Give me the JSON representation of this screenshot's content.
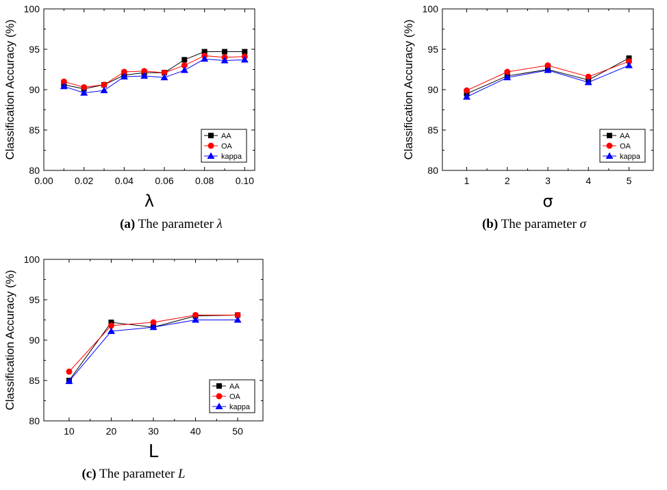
{
  "chart_data": [
    {
      "type": "line",
      "title": "",
      "xlabel": "λ",
      "ylabel": "Classification Accuracy (%)",
      "x": [
        0.01,
        0.02,
        0.03,
        0.04,
        0.05,
        0.06,
        0.07,
        0.08,
        0.09,
        0.1
      ],
      "xlim": [
        0.0,
        0.105
      ],
      "ylim": [
        80,
        100
      ],
      "xticks": [
        "0.00",
        "0.02",
        "0.04",
        "0.06",
        "0.08",
        "0.10"
      ],
      "xtick_values": [
        0.0,
        0.02,
        0.04,
        0.06,
        0.08,
        0.1
      ],
      "yticks": [
        "80",
        "85",
        "90",
        "95",
        "100"
      ],
      "ytick_values": [
        80,
        85,
        90,
        95,
        100
      ],
      "legend_position": "bottom-right",
      "series": [
        {
          "name": "AA",
          "color": "#000000",
          "marker": "square",
          "values": [
            90.6,
            90.1,
            90.6,
            91.8,
            92.1,
            92.1,
            93.7,
            94.7,
            94.7,
            94.7
          ]
        },
        {
          "name": "OA",
          "color": "#ff0000",
          "marker": "circle",
          "values": [
            91.0,
            90.3,
            90.6,
            92.2,
            92.3,
            92.1,
            93.0,
            94.2,
            94.0,
            94.1
          ]
        },
        {
          "name": "kappa",
          "color": "#0000ff",
          "marker": "triangle",
          "values": [
            90.4,
            89.6,
            89.9,
            91.6,
            91.7,
            91.5,
            92.4,
            93.8,
            93.6,
            93.7
          ]
        }
      ],
      "caption": {
        "label": "(a)",
        "text": "The parameter",
        "symbol": "λ"
      }
    },
    {
      "type": "line",
      "title": "",
      "xlabel": "σ",
      "ylabel": "Classification Accuracy (%)",
      "x": [
        1,
        2,
        3,
        4,
        5
      ],
      "xlim": [
        0.4,
        5.6
      ],
      "ylim": [
        80,
        100
      ],
      "xticks": [
        "1",
        "2",
        "3",
        "4",
        "5"
      ],
      "xtick_values": [
        1,
        2,
        3,
        4,
        5
      ],
      "yticks": [
        "80",
        "85",
        "90",
        "95",
        "100"
      ],
      "ytick_values": [
        80,
        85,
        90,
        95,
        100
      ],
      "legend_position": "bottom-right",
      "series": [
        {
          "name": "AA",
          "color": "#000000",
          "marker": "square",
          "values": [
            89.5,
            91.7,
            92.5,
            91.2,
            93.9
          ]
        },
        {
          "name": "OA",
          "color": "#ff0000",
          "marker": "circle",
          "values": [
            89.9,
            92.2,
            93.0,
            91.6,
            93.5
          ]
        },
        {
          "name": "kappa",
          "color": "#0000ff",
          "marker": "triangle",
          "values": [
            89.1,
            91.5,
            92.4,
            90.9,
            93.0
          ]
        }
      ],
      "caption": {
        "label": "(b)",
        "text": "The parameter",
        "symbol": "σ"
      }
    },
    {
      "type": "line",
      "title": "",
      "xlabel": "L",
      "ylabel": "Classification Accuracy (%)",
      "x": [
        10,
        20,
        30,
        40,
        50
      ],
      "xlim": [
        4,
        56
      ],
      "ylim": [
        80,
        100
      ],
      "xticks": [
        "10",
        "20",
        "30",
        "40",
        "50"
      ],
      "xtick_values": [
        10,
        20,
        30,
        40,
        50
      ],
      "yticks": [
        "80",
        "85",
        "90",
        "95",
        "100"
      ],
      "ytick_values": [
        80,
        85,
        90,
        95,
        100
      ],
      "legend_position": "bottom-right",
      "series": [
        {
          "name": "AA",
          "color": "#000000",
          "marker": "square",
          "values": [
            85.0,
            92.2,
            91.6,
            93.0,
            93.1
          ]
        },
        {
          "name": "OA",
          "color": "#ff0000",
          "marker": "circle",
          "values": [
            86.1,
            91.8,
            92.2,
            93.1,
            93.1
          ]
        },
        {
          "name": "kappa",
          "color": "#0000ff",
          "marker": "triangle",
          "values": [
            84.9,
            91.1,
            91.6,
            92.5,
            92.5
          ]
        }
      ],
      "caption": {
        "label": "(c)",
        "text": "The parameter",
        "symbol": "L"
      }
    }
  ]
}
